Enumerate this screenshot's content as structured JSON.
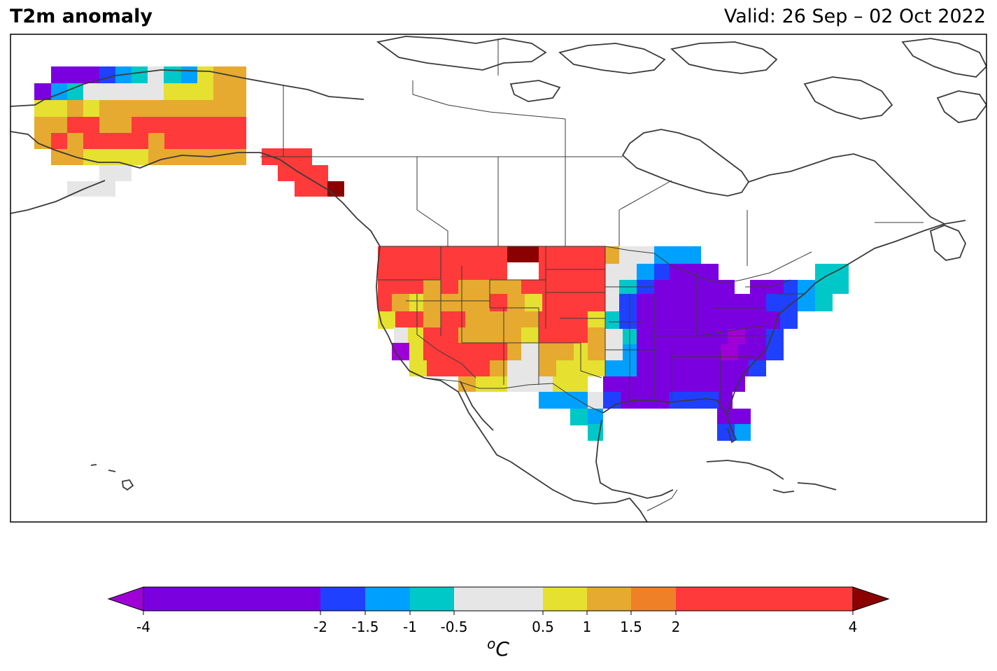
{
  "header": {
    "title": "T2m anomaly",
    "valid": "Valid: 26 Sep – 02 Oct 2022"
  },
  "colorbar": {
    "ticks": [
      "-4",
      "-2",
      "-1.5",
      "-1",
      "-0.5",
      "0.5",
      "1",
      "1.5",
      "2",
      "4"
    ],
    "unit_base": "C",
    "unit_sup": "o",
    "bins": [
      {
        "from": -4,
        "to": -2,
        "color": "#7b00e0"
      },
      {
        "from": -2,
        "to": -1.5,
        "color": "#2040ff"
      },
      {
        "from": -1.5,
        "to": -1,
        "color": "#00a0ff"
      },
      {
        "from": -1,
        "to": -0.5,
        "color": "#00c8c8"
      },
      {
        "from": -0.5,
        "to": 0.5,
        "color": "#e6e6e6"
      },
      {
        "from": 0.5,
        "to": 1,
        "color": "#e6e030"
      },
      {
        "from": 1,
        "to": 1.5,
        "color": "#e6aa30"
      },
      {
        "from": 1.5,
        "to": 2,
        "color": "#f08028"
      },
      {
        "from": 2,
        "to": 4,
        "color": "#ff3a3a"
      }
    ],
    "under_color": "#a000d8",
    "over_color": "#8b0000"
  },
  "map": {
    "projection": "Lambert conformal, North America",
    "region": "Alaska, western Canada and the contiguous United States",
    "features": [
      "coastlines",
      "country borders",
      "state and province borders"
    ]
  }
}
